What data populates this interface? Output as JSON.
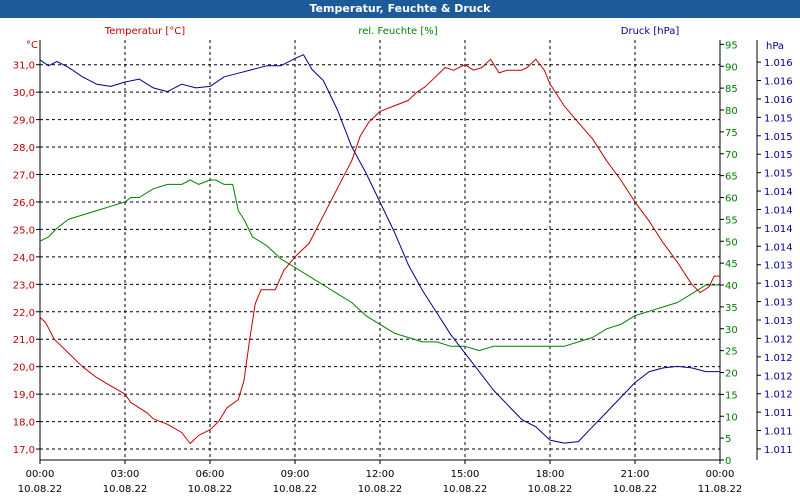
{
  "window": {
    "title": "Temperatur, Feuchte & Druck"
  },
  "colors": {
    "temperature": "#c00000",
    "humidity": "#008000",
    "pressure": "#00008b",
    "titlebar": "#1c5a9a",
    "grid": "#000000"
  },
  "chart_data": {
    "type": "line",
    "grid": true,
    "x_axis": {
      "range_hours": [
        0,
        24
      ],
      "ticks_hours": [
        0,
        3,
        6,
        9,
        12,
        15,
        18,
        21,
        24
      ],
      "tick_labels": [
        [
          "00:00",
          "10.08.22"
        ],
        [
          "03:00",
          "10.08.22"
        ],
        [
          "06:00",
          "10.08.22"
        ],
        [
          "09:00",
          "10.08.22"
        ],
        [
          "12:00",
          "10.08.22"
        ],
        [
          "15:00",
          "10.08.22"
        ],
        [
          "18:00",
          "10.08.22"
        ],
        [
          "21:00",
          "10.08.22"
        ],
        [
          "00:00",
          "11.08.22"
        ]
      ]
    },
    "temperature": {
      "name": "Temperatur [°C]",
      "unit": "°C",
      "ylim": [
        16.6,
        31.9
      ],
      "ticks": [
        17.0,
        18.0,
        19.0,
        20.0,
        21.0,
        22.0,
        23.0,
        24.0,
        25.0,
        26.0,
        27.0,
        28.0,
        29.0,
        30.0,
        31.0
      ],
      "tick_labels": [
        "17,0",
        "18,0",
        "19,0",
        "20,0",
        "21,0",
        "22,0",
        "23,0",
        "24,0",
        "25,0",
        "26,0",
        "27,0",
        "28,0",
        "29,0",
        "30,0",
        "31,0"
      ],
      "x": [
        0,
        0.2,
        0.5,
        1,
        1.5,
        2,
        2.5,
        3,
        3.2,
        3.5,
        3.8,
        4,
        4.5,
        5,
        5.3,
        5.6,
        6,
        6.3,
        6.6,
        7,
        7.2,
        7.4,
        7.6,
        7.8,
        8,
        8.3,
        8.6,
        9,
        9.5,
        10,
        10.5,
        11,
        11.3,
        11.6,
        12,
        12.5,
        13,
        13.3,
        13.6,
        14,
        14.3,
        14.6,
        15,
        15.3,
        15.6,
        15.9,
        16.2,
        16.5,
        17,
        17.2,
        17.5,
        17.8,
        18,
        18.5,
        19,
        19.5,
        20,
        20.5,
        21,
        21.5,
        22,
        22.5,
        23,
        23.3,
        23.6,
        23.8,
        24
      ],
      "values": [
        21.8,
        21.6,
        21.0,
        20.5,
        20.0,
        19.6,
        19.3,
        19.0,
        18.7,
        18.5,
        18.3,
        18.1,
        17.9,
        17.6,
        17.2,
        17.5,
        17.7,
        18.0,
        18.5,
        18.8,
        19.5,
        21.0,
        22.3,
        22.8,
        22.8,
        22.8,
        23.5,
        24.0,
        24.5,
        25.5,
        26.5,
        27.5,
        28.4,
        28.9,
        29.3,
        29.5,
        29.7,
        30.0,
        30.2,
        30.6,
        30.9,
        30.8,
        31.0,
        30.8,
        30.9,
        31.2,
        30.7,
        30.8,
        30.8,
        30.9,
        31.2,
        30.8,
        30.3,
        29.5,
        28.9,
        28.3,
        27.5,
        26.8,
        26.0,
        25.3,
        24.5,
        23.8,
        23.0,
        22.7,
        22.9,
        23.3,
        23.3
      ]
    },
    "humidity": {
      "name": "rel. Feuchte [%]",
      "unit": "%",
      "ylim": [
        0,
        96
      ],
      "ticks": [
        0,
        5,
        10,
        15,
        20,
        25,
        30,
        35,
        40,
        45,
        50,
        55,
        60,
        65,
        70,
        75,
        80,
        85,
        90,
        95
      ],
      "x": [
        0,
        0.3,
        0.6,
        1,
        1.5,
        2,
        2.5,
        3,
        3.2,
        3.5,
        4,
        4.5,
        5,
        5.3,
        5.6,
        6,
        6.2,
        6.5,
        6.8,
        7,
        7.2,
        7.5,
        8,
        8.5,
        9,
        9.5,
        10,
        10.5,
        11,
        11.5,
        12,
        12.5,
        13,
        13.5,
        14,
        14.5,
        15,
        15.5,
        16,
        16.5,
        17,
        17.5,
        18,
        18.5,
        19,
        19.5,
        20,
        20.5,
        21,
        21.5,
        22,
        22.5,
        23,
        23.5,
        24
      ],
      "values": [
        50,
        51,
        53,
        55,
        56,
        57,
        58,
        59,
        60,
        60,
        62,
        63,
        63,
        64,
        63,
        64,
        64,
        63,
        63,
        57,
        55,
        51,
        49,
        46,
        44,
        42,
        40,
        38,
        36,
        33,
        31,
        29,
        28,
        27,
        27,
        26,
        26,
        25,
        26,
        26,
        26,
        26,
        26,
        26,
        27,
        28,
        30,
        31,
        33,
        34,
        35,
        36,
        38,
        40,
        40
      ]
    },
    "pressure": {
      "name": "Druck [hPa]",
      "unit": "hPa",
      "axis_labels": [
        "1.011",
        "1.011",
        "1.011",
        "1.012",
        "1.012",
        "1.012",
        "1.012",
        "1.013",
        "1.013",
        "1.013",
        "1.013",
        "1.014",
        "1.014",
        "1.014",
        "1.014",
        "1.015",
        "1.015",
        "1.015",
        "1.015",
        "1.016",
        "1.016",
        "1.016"
      ],
      "ylim": [
        1010.85,
        1016.55
      ],
      "ticks": [
        1011.0,
        1011.25,
        1011.5,
        1011.75,
        1012.0,
        1012.25,
        1012.5,
        1012.75,
        1013.0,
        1013.25,
        1013.5,
        1013.75,
        1014.0,
        1014.25,
        1014.5,
        1014.75,
        1015.0,
        1015.25,
        1015.5,
        1015.75,
        1016.0,
        1016.25
      ],
      "x": [
        0,
        0.3,
        0.6,
        1,
        1.5,
        2,
        2.5,
        3,
        3.5,
        4,
        4.5,
        5,
        5.5,
        6,
        6.5,
        7,
        7.5,
        8,
        8.5,
        9,
        9.3,
        9.6,
        10,
        10.5,
        11,
        11.5,
        12,
        12.5,
        13,
        13.5,
        14,
        14.5,
        15,
        15.5,
        16,
        16.5,
        17,
        17.5,
        18,
        18.5,
        19,
        19.5,
        20,
        20.5,
        21,
        21.5,
        22,
        22.5,
        23,
        23.5,
        24
      ],
      "values": [
        1016.28,
        1016.2,
        1016.26,
        1016.18,
        1016.05,
        1015.95,
        1015.92,
        1015.98,
        1016.02,
        1015.9,
        1015.85,
        1015.95,
        1015.9,
        1015.92,
        1016.05,
        1016.1,
        1016.15,
        1016.2,
        1016.2,
        1016.3,
        1016.35,
        1016.15,
        1016.0,
        1015.6,
        1015.1,
        1014.75,
        1014.35,
        1013.95,
        1013.5,
        1013.15,
        1012.85,
        1012.55,
        1012.3,
        1012.05,
        1011.8,
        1011.6,
        1011.4,
        1011.3,
        1011.12,
        1011.08,
        1011.1,
        1011.3,
        1011.5,
        1011.7,
        1011.9,
        1012.05,
        1012.1,
        1012.12,
        1012.1,
        1012.05,
        1012.05
      ]
    }
  }
}
